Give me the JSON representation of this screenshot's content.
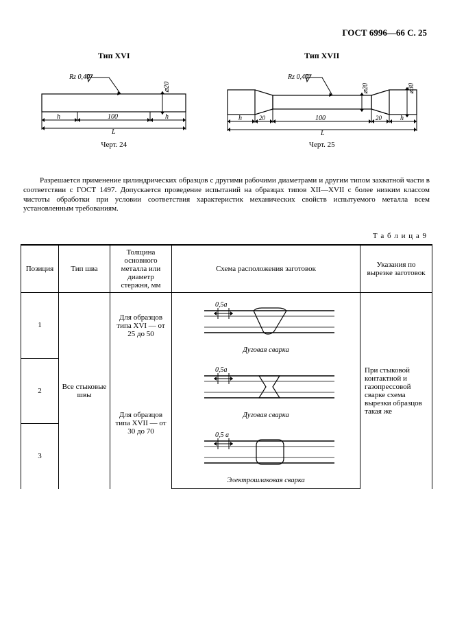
{
  "header": {
    "doc_ref": "ГОСТ 6996—66 С. 25"
  },
  "diagrams": {
    "left": {
      "title": "Тип XVI",
      "caption": "Черт. 24",
      "rz_label": "Rz 0,40",
      "diameter_label": "⌀20",
      "h_label": "h",
      "mid_label": "100",
      "total_label": "L"
    },
    "right": {
      "title": "Тип XVII",
      "caption": "Черт. 25",
      "rz_label": "Rz 0,40",
      "diameter_inner": "⌀20",
      "diameter_outer": "⌀30",
      "h_label": "h",
      "seg20": "20",
      "mid_label": "100",
      "total_label": "L"
    }
  },
  "paragraph": "Разрешается применение цилиндрических образцов с другими рабочими диаметрами и другим типом захватной части в соответствии с ГОСТ 1497. Допускается проведение испытаний на образцах типов XII—XVII с более низким классом чистоты обработки при условии соответствия характеристик механических свойств испытуемого металла всем установленным требованиям.",
  "table": {
    "label": "Т а б л и ц а  9",
    "columns": [
      "Позиция",
      "Тип шва",
      "Толщина основного металла или диаметр стержня, мм",
      "Схема расположения заготовок",
      "Указания по вырезке заготовок"
    ],
    "seam_type": "Все стыковые швы",
    "hint_text": "При стыковой контактной и газопрессовой сварке схема вырезки образцов такая же",
    "rows": [
      {
        "pos": "1",
        "thickness": "Для образцов типа XVI — от 25 до 50",
        "schema_caption": "Дуговая сварка",
        "dim_label": "0,5a",
        "weld": "v"
      },
      {
        "pos": "2",
        "thickness": "",
        "schema_caption": "Дуговая сварка",
        "dim_label": "0,5a",
        "weld": "x"
      },
      {
        "pos": "3",
        "thickness": "Для образцов типа XVII — от 30 до 70",
        "schema_caption": "Электрошлаковая сварка",
        "dim_label": "0,5 a",
        "weld": "slag"
      }
    ]
  },
  "colors": {
    "line": "#000000",
    "hatch": "#000000",
    "bg": "#ffffff"
  }
}
